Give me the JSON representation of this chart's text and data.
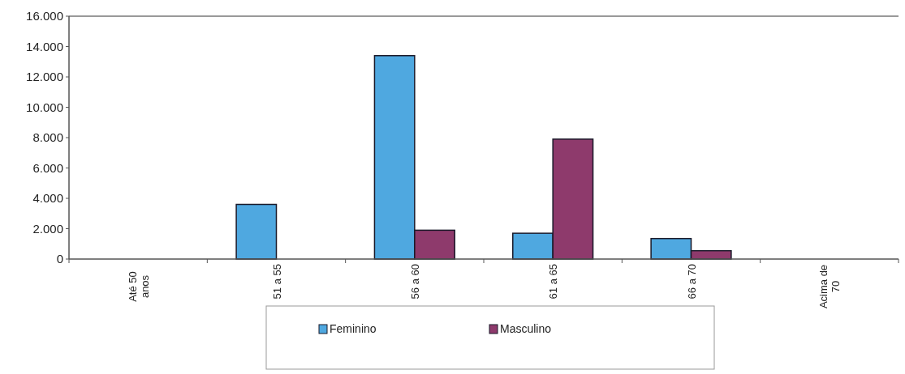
{
  "chart_data": {
    "type": "bar",
    "categories": [
      "Até 50 anos",
      "51 a 55",
      "56 a 60",
      "61 a 65",
      "66 a 70",
      "Acima de 70"
    ],
    "series": [
      {
        "name": "Feminino",
        "color": "#4fa8e0",
        "values": [
          0,
          3600,
          13400,
          1700,
          1350,
          0
        ]
      },
      {
        "name": "Masculino",
        "color": "#8e3a6c",
        "values": [
          0,
          0,
          1900,
          7900,
          550,
          0
        ]
      }
    ],
    "ylim": [
      0,
      16000
    ],
    "yticks": [
      {
        "value": 0,
        "label": "0"
      },
      {
        "value": 2000,
        "label": "2.000"
      },
      {
        "value": 4000,
        "label": "4.000"
      },
      {
        "value": 6000,
        "label": "6.000"
      },
      {
        "value": 8000,
        "label": "8.000"
      },
      {
        "value": 10000,
        "label": "10.000"
      },
      {
        "value": 12000,
        "label": "12.000"
      },
      {
        "value": 14000,
        "label": "14.000"
      },
      {
        "value": 16000,
        "label": "16.000"
      }
    ],
    "legend": "bottom",
    "grid": false
  }
}
